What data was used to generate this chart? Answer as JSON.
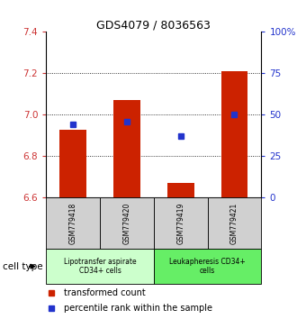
{
  "title": "GDS4079 / 8036563",
  "samples": [
    "GSM779418",
    "GSM779420",
    "GSM779419",
    "GSM779421"
  ],
  "red_values": [
    6.93,
    7.07,
    6.67,
    7.21
  ],
  "blue_values": [
    44,
    46,
    37,
    50
  ],
  "ylim_left": [
    6.6,
    7.4
  ],
  "ylim_right": [
    0,
    100
  ],
  "yticks_left": [
    6.6,
    6.8,
    7.0,
    7.2,
    7.4
  ],
  "yticks_right": [
    0,
    25,
    50,
    75,
    100
  ],
  "ytick_labels_right": [
    "0",
    "25",
    "50",
    "75",
    "100%"
  ],
  "red_color": "#cc2200",
  "blue_color": "#2233cc",
  "bar_bottom": 6.6,
  "cell_types": [
    {
      "label": "Lipotransfer aspirate\nCD34+ cells",
      "color": "#ccffcc",
      "span": [
        0,
        2
      ]
    },
    {
      "label": "Leukapheresis CD34+\ncells",
      "color": "#66ee66",
      "span": [
        2,
        4
      ]
    }
  ],
  "cell_type_label": "cell type",
  "legend_items": [
    {
      "color": "#cc2200",
      "label": "transformed count"
    },
    {
      "color": "#2233cc",
      "label": "percentile rank within the sample"
    }
  ],
  "grid_color": "#000000",
  "tick_color_left": "#cc3333",
  "tick_color_right": "#2233cc",
  "sample_box_color": "#d0d0d0",
  "bar_width": 0.5
}
